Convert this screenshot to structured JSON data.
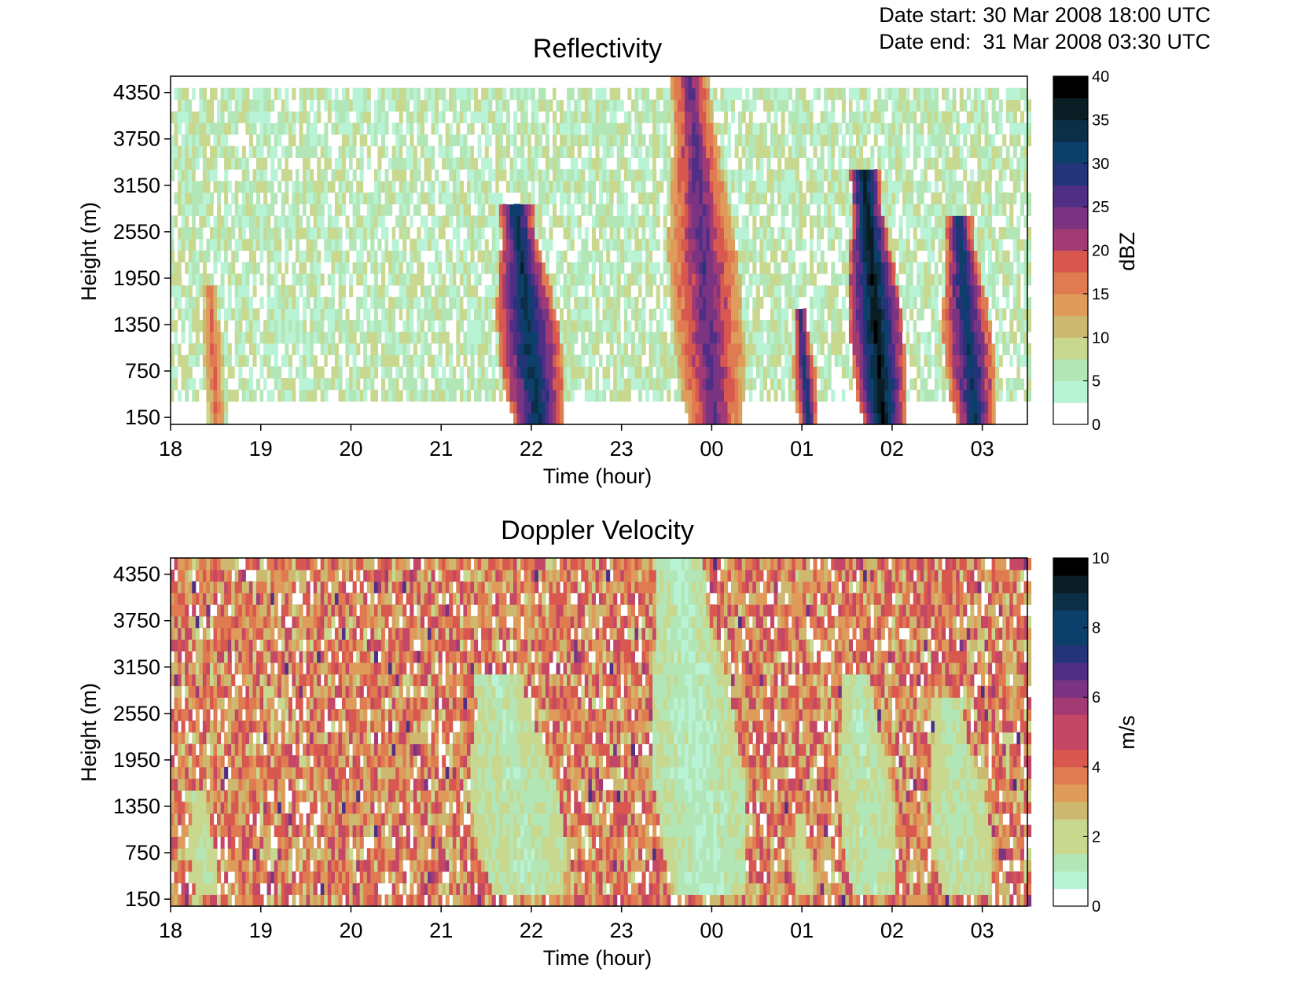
{
  "header": {
    "date_start_label": "Date start:",
    "date_start_value": "30 Mar 2008 18:00 UTC",
    "date_end_label": "Date end:",
    "date_end_value": "31 Mar 2008 03:30 UTC"
  },
  "chart_data": [
    {
      "type": "heatmap",
      "title": "Reflectivity",
      "xlabel": "Time (hour)",
      "ylabel": "Height (m)",
      "x_ticks": [
        "18",
        "19",
        "20",
        "21",
        "22",
        "23",
        "00",
        "01",
        "02",
        "03"
      ],
      "x_range_hours": [
        18,
        27.5
      ],
      "y_ticks": [
        150,
        750,
        1350,
        1950,
        2550,
        3150,
        3750,
        4350
      ],
      "y_range": [
        60,
        4560
      ],
      "colorbar": {
        "label": "dBZ",
        "ticks": [
          0,
          5,
          10,
          15,
          20,
          25,
          30,
          35,
          40
        ],
        "range": [
          0,
          40
        ],
        "levels": 16,
        "colors": [
          "#ffffff",
          "#b9f3d6",
          "#b3e6b7",
          "#c8d88f",
          "#cdb86f",
          "#de9b5a",
          "#e07a50",
          "#d8584f",
          "#c44866",
          "#a23b74",
          "#7a3481",
          "#4f2f86",
          "#24347a",
          "#0d3f6b",
          "#0c2f48",
          "#0a1d24",
          "#000000"
        ]
      },
      "background": "noisy light-green values (~2-10 dBZ) over most of the domain",
      "features": [
        {
          "name": "cell 1",
          "time_hours": [
            18.35,
            18.6
          ],
          "height_m": [
            60,
            1900
          ],
          "max_dbz": 18
        },
        {
          "name": "cell 2",
          "time_hours": [
            21.6,
            22.3
          ],
          "height_m": [
            60,
            2900
          ],
          "max_dbz": 34
        },
        {
          "name": "cell 3",
          "time_hours": [
            23.5,
            24.3
          ],
          "height_m": [
            60,
            4560
          ],
          "max_dbz": 26
        },
        {
          "name": "cell 4",
          "time_hours": [
            24.9,
            25.15
          ],
          "height_m": [
            60,
            1500
          ],
          "max_dbz": 30
        },
        {
          "name": "cell 5",
          "time_hours": [
            25.5,
            26.1
          ],
          "height_m": [
            60,
            3300
          ],
          "max_dbz": 38
        },
        {
          "name": "cell 6",
          "time_hours": [
            26.55,
            27.1
          ],
          "height_m": [
            60,
            2800
          ],
          "max_dbz": 32
        }
      ]
    },
    {
      "type": "heatmap",
      "title": "Doppler Velocity",
      "xlabel": "Time (hour)",
      "ylabel": "Height (m)",
      "x_ticks": [
        "18",
        "19",
        "20",
        "21",
        "22",
        "23",
        "00",
        "01",
        "02",
        "03"
      ],
      "x_range_hours": [
        18,
        27.5
      ],
      "y_ticks": [
        150,
        750,
        1350,
        1950,
        2550,
        3150,
        3750,
        4350
      ],
      "y_range": [
        60,
        4560
      ],
      "colorbar": {
        "label": "m/s",
        "ticks": [
          0,
          2,
          4,
          6,
          8,
          10
        ],
        "range": [
          0,
          10
        ],
        "levels": 20,
        "colors": [
          "#ffffff",
          "#b9f3d6",
          "#b3e6b7",
          "#c8d88f",
          "#cdb86f",
          "#de9b5a",
          "#e07a50",
          "#d8584f",
          "#c44866",
          "#a23b74",
          "#7a3481",
          "#4f2f86",
          "#24347a",
          "#0d3f6b",
          "#0c2f48",
          "#0a1d24",
          "#000000"
        ]
      },
      "background": "noisy orange values (~2.5-4.5 m/s) over most of the domain",
      "features": [
        {
          "name": "cell 1",
          "time_hours": [
            18.2,
            18.5
          ],
          "height_m": [
            150,
            1500
          ],
          "velocity_m_s": 1.5
        },
        {
          "name": "cell 2",
          "time_hours": [
            21.3,
            22.3
          ],
          "height_m": [
            150,
            3100
          ],
          "velocity_m_s": 1.2
        },
        {
          "name": "cell 3",
          "time_hours": [
            23.3,
            24.3
          ],
          "height_m": [
            150,
            4560
          ],
          "velocity_m_s": 1.0
        },
        {
          "name": "cell 4",
          "time_hours": [
            24.9,
            25.1
          ],
          "height_m": [
            150,
            1200
          ],
          "velocity_m_s": 1.5
        },
        {
          "name": "cell 5",
          "time_hours": [
            25.4,
            26.0
          ],
          "height_m": [
            150,
            3100
          ],
          "velocity_m_s": 1.2
        },
        {
          "name": "cell 6",
          "time_hours": [
            26.4,
            27.05
          ],
          "height_m": [
            150,
            2700
          ],
          "velocity_m_s": 1.3
        }
      ]
    }
  ]
}
